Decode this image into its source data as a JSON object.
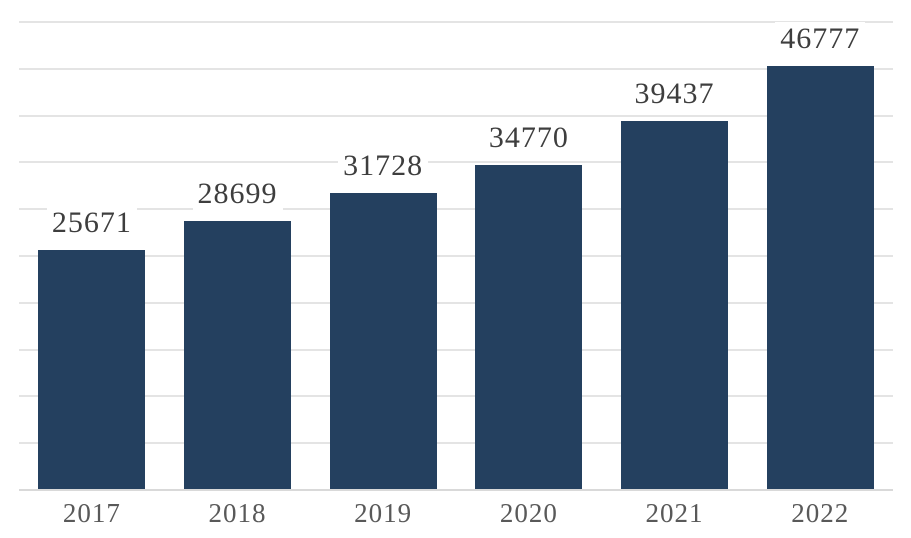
{
  "chart_data": {
    "type": "bar",
    "title": "",
    "xlabel": "",
    "ylabel": "",
    "categories": [
      "2017",
      "2018",
      "2019",
      "2020",
      "2021",
      "2022"
    ],
    "values": [
      25671,
      28699,
      31728,
      34770,
      39437,
      46777
    ],
    "data_labels": [
      "25671",
      "28699",
      "31728",
      "34770",
      "39437",
      "46777"
    ],
    "ylim": [
      0,
      50000
    ],
    "gridline_step": 5000,
    "grid": true,
    "legend": false,
    "colors": {
      "bar_fill": "#24405F",
      "value_label": "#3E3E3E",
      "axis_tick_label": "#595959",
      "gridline": "#E4E4E4",
      "axis_line": "#D9D9D9",
      "background": "#FFFFFF"
    }
  }
}
